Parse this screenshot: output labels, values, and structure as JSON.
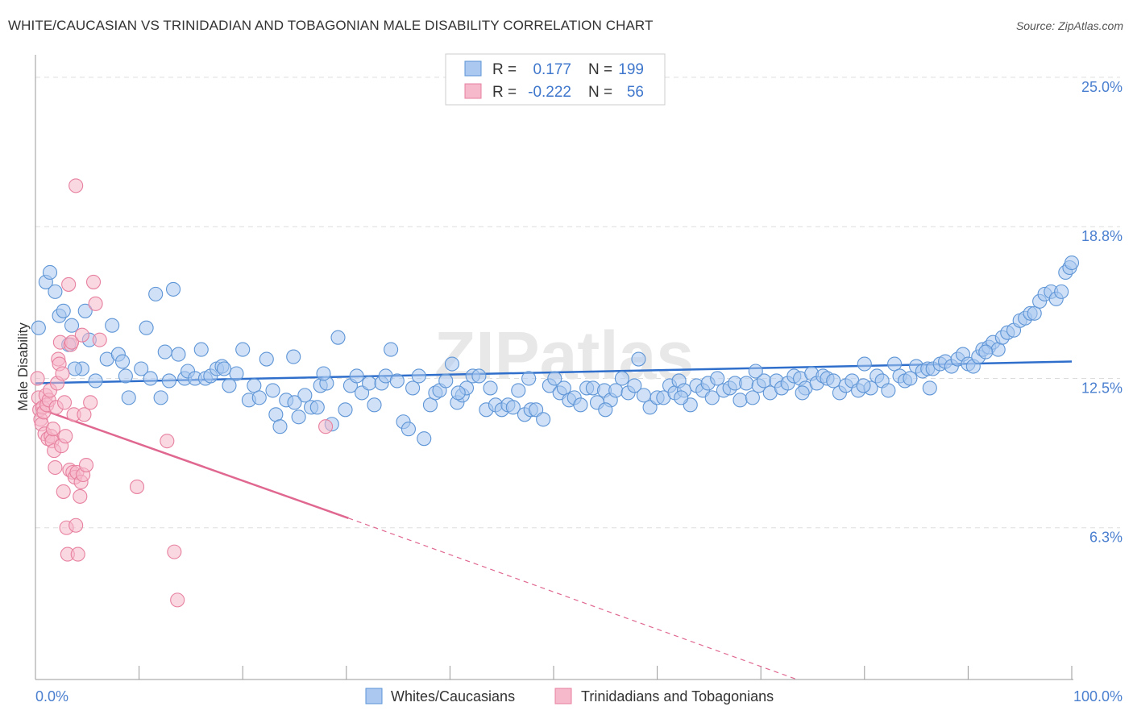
{
  "header": {
    "title": "WHITE/CAUCASIAN VS TRINIDADIAN AND TOBAGONIAN MALE DISABILITY CORRELATION CHART",
    "source": "Source: ZipAtlas.com"
  },
  "watermark": "ZIPatlas",
  "colors": {
    "blue_fill": "#aac8f0",
    "blue_stroke": "#5e95d6",
    "blue_line": "#2f6fcb",
    "pink_fill": "#f6b8cb",
    "pink_stroke": "#e7819f",
    "pink_line": "#e06890",
    "tick_label": "#4a7fcf",
    "grid": "#dddddd"
  },
  "legend_top": {
    "rows": [
      {
        "r_label": "R =",
        "r_value": "0.177",
        "n_label": "N =",
        "n_value": "199"
      },
      {
        "r_label": "R =",
        "r_value": "-0.222",
        "n_label": "N =",
        "n_value": "56"
      }
    ]
  },
  "chart_data": {
    "type": "scatter",
    "title": "WHITE/CAUCASIAN VS TRINIDADIAN AND TOBAGONIAN MALE DISABILITY CORRELATION CHART",
    "xlabel": "",
    "ylabel": "Male Disability",
    "xlim": [
      0,
      100
    ],
    "ylim": [
      0,
      25.6
    ],
    "x_tick_labels": [
      "0.0%",
      "100.0%"
    ],
    "y_ticks": [
      6.3,
      12.5,
      18.8,
      25.0
    ],
    "y_tick_labels": [
      "6.3%",
      "12.5%",
      "18.8%",
      "25.0%"
    ],
    "grid": true,
    "legend_position": "bottom-center",
    "series": [
      {
        "name": "Whites/Caucasians",
        "r": 0.177,
        "n": 199,
        "trend": {
          "x0": 0,
          "y0": 12.3,
          "x1": 100,
          "y1": 13.2
        },
        "points": [
          [
            0.3,
            14.6
          ],
          [
            1.0,
            16.5
          ],
          [
            1.4,
            16.9
          ],
          [
            1.9,
            16.1
          ],
          [
            2.3,
            15.1
          ],
          [
            2.7,
            15.3
          ],
          [
            3.5,
            14.7
          ],
          [
            3.2,
            13.9
          ],
          [
            4.8,
            15.3
          ],
          [
            5.2,
            14.1
          ],
          [
            4.5,
            12.9
          ],
          [
            5.8,
            12.4
          ],
          [
            6.9,
            13.3
          ],
          [
            7.4,
            14.7
          ],
          [
            8.0,
            13.5
          ],
          [
            8.4,
            13.2
          ],
          [
            9.0,
            11.7
          ],
          [
            10.2,
            12.9
          ],
          [
            10.7,
            14.6
          ],
          [
            11.1,
            12.5
          ],
          [
            11.6,
            16.0
          ],
          [
            12.1,
            11.7
          ],
          [
            12.5,
            13.6
          ],
          [
            13.3,
            16.2
          ],
          [
            13.8,
            13.5
          ],
          [
            14.4,
            12.5
          ],
          [
            14.7,
            12.8
          ],
          [
            15.4,
            12.5
          ],
          [
            16.0,
            13.7
          ],
          [
            16.4,
            12.5
          ],
          [
            16.9,
            12.6
          ],
          [
            17.5,
            12.9
          ],
          [
            18.0,
            13.0
          ],
          [
            18.7,
            12.2
          ],
          [
            19.4,
            12.7
          ],
          [
            20.0,
            13.7
          ],
          [
            20.6,
            11.6
          ],
          [
            21.1,
            12.2
          ],
          [
            21.6,
            11.7
          ],
          [
            22.3,
            13.3
          ],
          [
            22.9,
            12.0
          ],
          [
            23.2,
            11.0
          ],
          [
            23.6,
            10.5
          ],
          [
            24.2,
            11.6
          ],
          [
            24.9,
            13.4
          ],
          [
            25.4,
            10.9
          ],
          [
            26.0,
            11.8
          ],
          [
            26.6,
            11.3
          ],
          [
            27.2,
            11.3
          ],
          [
            27.5,
            12.2
          ],
          [
            28.1,
            12.3
          ],
          [
            28.6,
            10.6
          ],
          [
            29.2,
            14.2
          ],
          [
            29.9,
            11.2
          ],
          [
            30.4,
            12.2
          ],
          [
            31.0,
            12.6
          ],
          [
            31.5,
            11.9
          ],
          [
            32.2,
            12.3
          ],
          [
            32.7,
            11.4
          ],
          [
            33.4,
            12.3
          ],
          [
            33.8,
            12.6
          ],
          [
            34.3,
            13.7
          ],
          [
            34.9,
            12.4
          ],
          [
            35.5,
            10.7
          ],
          [
            36.0,
            10.4
          ],
          [
            36.4,
            12.1
          ],
          [
            37.0,
            12.6
          ],
          [
            37.5,
            10.0
          ],
          [
            38.1,
            11.4
          ],
          [
            38.6,
            11.9
          ],
          [
            39.0,
            12.0
          ],
          [
            39.6,
            12.4
          ],
          [
            40.2,
            13.1
          ],
          [
            40.7,
            11.5
          ],
          [
            41.2,
            11.8
          ],
          [
            41.6,
            12.1
          ],
          [
            42.2,
            12.6
          ],
          [
            42.8,
            12.6
          ],
          [
            43.5,
            11.2
          ],
          [
            43.9,
            12.1
          ],
          [
            44.4,
            11.4
          ],
          [
            45.0,
            11.2
          ],
          [
            45.6,
            11.4
          ],
          [
            46.1,
            11.3
          ],
          [
            46.6,
            12.0
          ],
          [
            47.2,
            11.0
          ],
          [
            47.8,
            11.2
          ],
          [
            48.3,
            11.2
          ],
          [
            49.0,
            10.8
          ],
          [
            49.6,
            12.2
          ],
          [
            50.1,
            12.5
          ],
          [
            50.6,
            11.9
          ],
          [
            51.0,
            12.1
          ],
          [
            51.5,
            11.6
          ],
          [
            52.0,
            11.7
          ],
          [
            52.6,
            11.4
          ],
          [
            53.2,
            12.1
          ],
          [
            53.8,
            12.1
          ],
          [
            54.2,
            11.5
          ],
          [
            54.9,
            12.0
          ],
          [
            55.5,
            11.6
          ],
          [
            56.0,
            12.0
          ],
          [
            56.6,
            12.5
          ],
          [
            57.2,
            11.9
          ],
          [
            57.8,
            12.2
          ],
          [
            58.2,
            13.3
          ],
          [
            58.7,
            11.8
          ],
          [
            59.3,
            11.3
          ],
          [
            60.0,
            11.7
          ],
          [
            60.6,
            11.7
          ],
          [
            61.2,
            12.2
          ],
          [
            61.7,
            11.9
          ],
          [
            62.1,
            12.4
          ],
          [
            62.6,
            12.0
          ],
          [
            63.2,
            11.4
          ],
          [
            63.8,
            12.2
          ],
          [
            64.4,
            12.0
          ],
          [
            64.9,
            12.3
          ],
          [
            65.3,
            11.7
          ],
          [
            65.8,
            12.5
          ],
          [
            66.4,
            12.0
          ],
          [
            67.0,
            12.1
          ],
          [
            67.5,
            12.3
          ],
          [
            68.0,
            11.6
          ],
          [
            68.6,
            12.3
          ],
          [
            69.2,
            11.7
          ],
          [
            69.8,
            12.2
          ],
          [
            70.3,
            12.4
          ],
          [
            70.9,
            11.9
          ],
          [
            71.5,
            12.4
          ],
          [
            72.0,
            12.1
          ],
          [
            72.6,
            12.3
          ],
          [
            73.2,
            12.6
          ],
          [
            73.8,
            12.5
          ],
          [
            74.3,
            12.1
          ],
          [
            74.9,
            12.7
          ],
          [
            75.4,
            12.3
          ],
          [
            76.0,
            12.6
          ],
          [
            76.4,
            12.5
          ],
          [
            77.0,
            12.4
          ],
          [
            77.6,
            11.9
          ],
          [
            78.2,
            12.2
          ],
          [
            78.8,
            12.4
          ],
          [
            79.4,
            12.0
          ],
          [
            80.0,
            13.1
          ],
          [
            80.6,
            12.1
          ],
          [
            81.2,
            12.6
          ],
          [
            81.7,
            12.4
          ],
          [
            82.3,
            12.0
          ],
          [
            82.9,
            13.1
          ],
          [
            83.4,
            12.6
          ],
          [
            83.9,
            12.4
          ],
          [
            84.4,
            12.5
          ],
          [
            85.0,
            13.0
          ],
          [
            85.6,
            12.8
          ],
          [
            86.1,
            12.9
          ],
          [
            86.6,
            12.9
          ],
          [
            87.3,
            13.1
          ],
          [
            87.8,
            13.2
          ],
          [
            88.4,
            13.0
          ],
          [
            89.0,
            13.3
          ],
          [
            89.5,
            13.5
          ],
          [
            90.0,
            13.1
          ],
          [
            90.5,
            13.0
          ],
          [
            91.0,
            13.4
          ],
          [
            91.4,
            13.7
          ],
          [
            92.0,
            13.8
          ],
          [
            92.4,
            14.0
          ],
          [
            92.9,
            13.7
          ],
          [
            93.3,
            14.2
          ],
          [
            93.8,
            14.4
          ],
          [
            94.4,
            14.5
          ],
          [
            95.0,
            14.9
          ],
          [
            95.5,
            15.0
          ],
          [
            96.0,
            15.2
          ],
          [
            96.4,
            15.2
          ],
          [
            96.9,
            15.7
          ],
          [
            97.4,
            16.0
          ],
          [
            98.0,
            16.1
          ],
          [
            98.5,
            15.8
          ],
          [
            99.0,
            16.1
          ],
          [
            99.4,
            16.9
          ],
          [
            99.8,
            17.1
          ],
          [
            100.0,
            17.3
          ],
          [
            40.8,
            11.9
          ],
          [
            47.6,
            12.5
          ],
          [
            55.0,
            11.2
          ],
          [
            62.3,
            11.7
          ],
          [
            69.5,
            12.8
          ],
          [
            74.0,
            11.9
          ],
          [
            79.9,
            12.2
          ],
          [
            86.3,
            12.1
          ],
          [
            91.7,
            13.6
          ],
          [
            25.0,
            11.5
          ],
          [
            18.2,
            12.9
          ],
          [
            12.9,
            12.4
          ],
          [
            8.7,
            12.6
          ],
          [
            3.8,
            12.9
          ],
          [
            27.8,
            12.7
          ]
        ]
      },
      {
        "name": "Trinidadians and Tobagonians",
        "r": -0.222,
        "n": 56,
        "trend": {
          "x0": 0,
          "y0": 11.3,
          "x1": 30.2,
          "y1": 6.7
        },
        "trend_dashed": {
          "x0": 30.2,
          "y0": 6.7,
          "x1": 73.5,
          "y1": 0.0
        },
        "points": [
          [
            0.2,
            12.5
          ],
          [
            0.3,
            11.7
          ],
          [
            0.4,
            11.2
          ],
          [
            0.5,
            10.8
          ],
          [
            0.6,
            10.6
          ],
          [
            0.7,
            11.3
          ],
          [
            0.8,
            11.1
          ],
          [
            0.9,
            10.2
          ],
          [
            1.0,
            11.8
          ],
          [
            1.1,
            11.4
          ],
          [
            1.2,
            10.0
          ],
          [
            1.3,
            11.6
          ],
          [
            1.4,
            12.0
          ],
          [
            1.5,
            10.1
          ],
          [
            1.6,
            9.9
          ],
          [
            1.7,
            10.4
          ],
          [
            1.8,
            9.5
          ],
          [
            1.9,
            8.8
          ],
          [
            2.0,
            11.3
          ],
          [
            2.1,
            12.3
          ],
          [
            2.2,
            13.3
          ],
          [
            2.3,
            13.1
          ],
          [
            2.4,
            14.0
          ],
          [
            2.5,
            9.7
          ],
          [
            2.6,
            12.7
          ],
          [
            2.7,
            7.8
          ],
          [
            2.8,
            11.5
          ],
          [
            2.9,
            10.1
          ],
          [
            3.0,
            6.3
          ],
          [
            3.1,
            5.2
          ],
          [
            3.2,
            16.4
          ],
          [
            3.3,
            8.7
          ],
          [
            3.4,
            13.9
          ],
          [
            3.5,
            14.0
          ],
          [
            3.6,
            8.6
          ],
          [
            3.7,
            11.0
          ],
          [
            3.8,
            8.4
          ],
          [
            3.9,
            6.4
          ],
          [
            4.0,
            8.6
          ],
          [
            4.1,
            5.2
          ],
          [
            4.3,
            7.6
          ],
          [
            4.4,
            8.2
          ],
          [
            4.5,
            14.3
          ],
          [
            4.6,
            8.5
          ],
          [
            4.7,
            11.0
          ],
          [
            4.9,
            8.9
          ],
          [
            5.3,
            11.5
          ],
          [
            5.6,
            16.5
          ],
          [
            5.8,
            15.6
          ],
          [
            6.2,
            14.1
          ],
          [
            3.9,
            20.5
          ],
          [
            9.8,
            8.0
          ],
          [
            12.7,
            9.9
          ],
          [
            13.4,
            5.3
          ],
          [
            13.7,
            3.3
          ],
          [
            28.0,
            10.5
          ]
        ]
      }
    ]
  },
  "legend_bottom": {
    "items": [
      {
        "label": "Whites/Caucasians"
      },
      {
        "label": "Trinidadians and Tobagonians"
      }
    ]
  }
}
